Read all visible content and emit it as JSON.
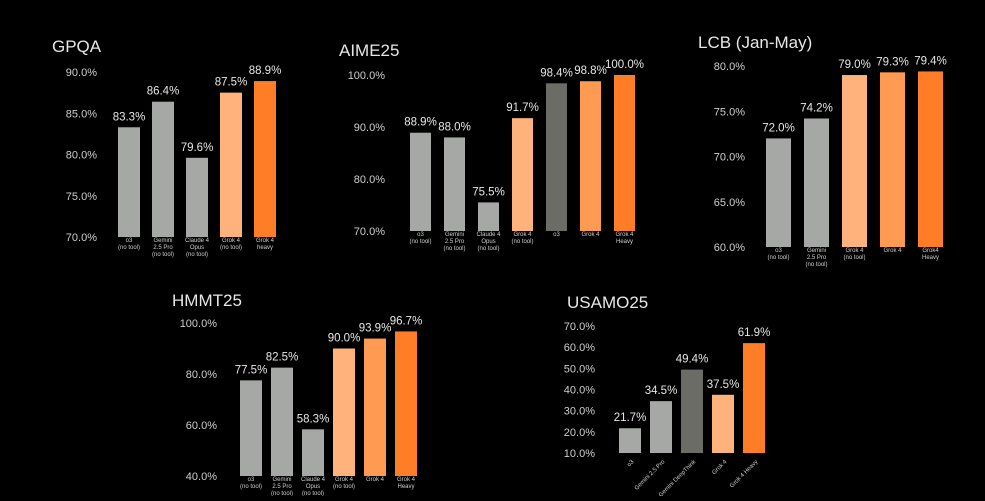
{
  "colors": {
    "background": "#000000",
    "gray": "#a5a8a5",
    "dark_gray": "#6c6c67",
    "light_orange": "#ffb27c",
    "mid_orange": "#ff9a52",
    "orange": "#ff7d26",
    "text": "#e6e6e6",
    "tick_text": "#cfcfcf"
  },
  "chart_data": [
    {
      "type": "bar",
      "title": "GPQA",
      "ylim": [
        70,
        90
      ],
      "yticks": [
        "90.0%",
        "85.0%",
        "80.0%",
        "75.0%",
        "70.0%"
      ],
      "ytick_values": [
        90,
        85,
        80,
        75,
        70
      ],
      "categories": [
        "o3\n(no tool)",
        "Gemini\n2.5 Pro\n(no tool)",
        "Claude 4\nOpus\n(no tool)",
        "Grok 4\n(no tool)",
        "Grok 4\nheavy"
      ],
      "values": [
        83.3,
        86.4,
        79.6,
        87.5,
        88.9
      ],
      "labels": [
        "83.3%",
        "86.4%",
        "79.6%",
        "87.5%",
        "88.9%"
      ],
      "colors": [
        "gray",
        "gray",
        "gray",
        "light_orange",
        "orange"
      ],
      "label_rotation": 0
    },
    {
      "type": "bar",
      "title": "AIME25",
      "ylim": [
        70,
        100
      ],
      "yticks": [
        "100.0%",
        "90.0%",
        "80.0%",
        "70.0%"
      ],
      "ytick_values": [
        100,
        90,
        80,
        70
      ],
      "categories": [
        "o3\n(no tool)",
        "Gemini\n2.5 Pro\n(no tool)",
        "Claude 4\nOpus\n(no tool)",
        "Grok 4\n(no tool)",
        "o3",
        "Grok 4",
        "Grok 4\nHeavy"
      ],
      "values": [
        88.9,
        88.0,
        75.5,
        91.7,
        98.4,
        98.8,
        100.0
      ],
      "labels": [
        "88.9%",
        "88.0%",
        "75.5%",
        "91.7%",
        "98.4%",
        "98.8%",
        "100.0%"
      ],
      "colors": [
        "gray",
        "gray",
        "gray",
        "light_orange",
        "dark_gray",
        "mid_orange",
        "orange"
      ],
      "label_rotation": 0
    },
    {
      "type": "bar",
      "title": "LCB (Jan-May)",
      "ylim": [
        60,
        80
      ],
      "yticks": [
        "80.0%",
        "75.0%",
        "70.0%",
        "65.0%",
        "60.0%"
      ],
      "ytick_values": [
        80,
        75,
        70,
        65,
        60
      ],
      "categories": [
        "o3\n(no tool)",
        "Gemini\n2.5 Pro\n(no tool)",
        "Grok 4\n(no tool)",
        "Grok 4",
        "Grok4\nHeavy"
      ],
      "values": [
        72.0,
        74.2,
        79.0,
        79.3,
        79.4
      ],
      "labels": [
        "72.0%",
        "74.2%",
        "79.0%",
        "79.3%",
        "79.4%"
      ],
      "colors": [
        "gray",
        "gray",
        "light_orange",
        "mid_orange",
        "orange"
      ],
      "label_rotation": 0
    },
    {
      "type": "bar",
      "title": "HMMT25",
      "ylim": [
        40,
        100
      ],
      "yticks": [
        "100.0%",
        "80.0%",
        "60.0%",
        "40.0%"
      ],
      "ytick_values": [
        100,
        80,
        60,
        40
      ],
      "categories": [
        "o3\n(no tool)",
        "Gemini\n2.5 Pro\n(no tool)",
        "Claude 4\nOpus\n(no tool)",
        "Grok 4\n(no tool)",
        "Grok 4",
        "Grok 4\nHeavy"
      ],
      "values": [
        77.5,
        82.5,
        58.3,
        90.0,
        93.9,
        96.7
      ],
      "labels": [
        "77.5%",
        "82.5%",
        "58.3%",
        "90.0%",
        "93.9%",
        "96.7%"
      ],
      "colors": [
        "gray",
        "gray",
        "gray",
        "light_orange",
        "mid_orange",
        "orange"
      ],
      "label_rotation": 0
    },
    {
      "type": "bar",
      "title": "USAMO25",
      "ylim": [
        10,
        70
      ],
      "yticks": [
        "70.0%",
        "60.0%",
        "50.0%",
        "40.0%",
        "30.0%",
        "20.0%",
        "10.0%"
      ],
      "ytick_values": [
        70,
        60,
        50,
        40,
        30,
        20,
        10
      ],
      "categories": [
        "o3",
        "Gemini 2.5 Pro",
        "Gemini DeepThink",
        "Grok 4",
        "Grok 4 Heavy"
      ],
      "values": [
        21.7,
        34.5,
        49.4,
        37.5,
        61.9
      ],
      "labels": [
        "21.7%",
        "34.5%",
        "49.4%",
        "37.5%",
        "61.9%"
      ],
      "colors": [
        "gray",
        "gray",
        "dark_gray",
        "light_orange",
        "orange"
      ],
      "label_rotation": -45
    }
  ]
}
